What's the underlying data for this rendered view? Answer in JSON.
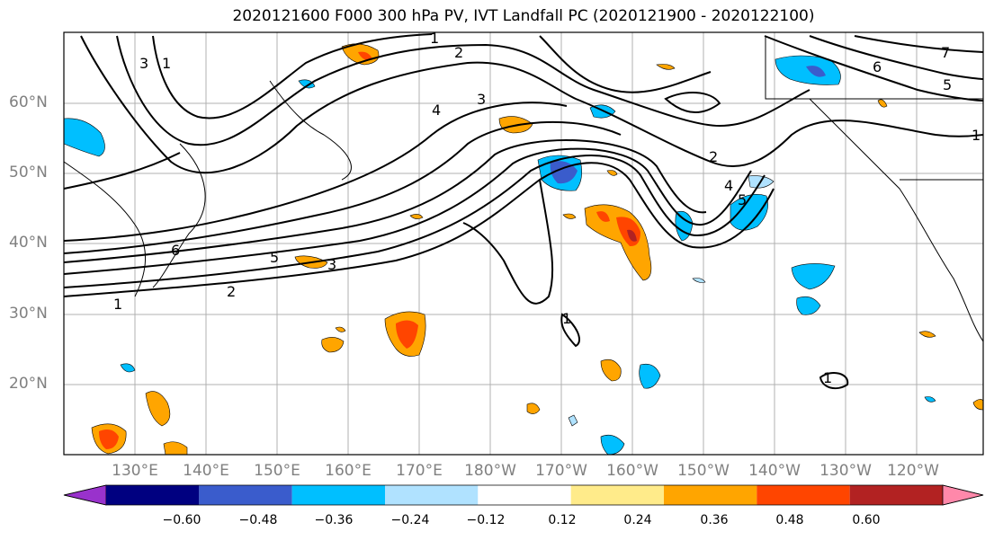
{
  "title": "2020121600 F000 300 hPa PV, IVT Landfall PC (2020121900 - 2020122100)",
  "lat_labels": [
    "60°N",
    "50°N",
    "40°N",
    "30°N",
    "20°N"
  ],
  "lon_labels": [
    "130°E",
    "140°E",
    "150°E",
    "160°E",
    "170°E",
    "180°W",
    "170°W",
    "160°W",
    "150°W",
    "140°W",
    "130°W",
    "120°W"
  ],
  "contour_labels": [
    "1",
    "2",
    "3",
    "4",
    "5",
    "6",
    "7"
  ],
  "colorbar": {
    "ticks": [
      "−0.60",
      "−0.48",
      "−0.36",
      "−0.24",
      "−0.12",
      "0.12",
      "0.24",
      "0.36",
      "0.48",
      "0.60"
    ],
    "colors": [
      "#9932cc",
      "#000080",
      "#3a5ccc",
      "#00bfff",
      "#b0e2ff",
      "#ffffff",
      "#ffeb8a",
      "#ffa500",
      "#ff4500",
      "#b22222",
      "#ff88aa"
    ]
  }
}
